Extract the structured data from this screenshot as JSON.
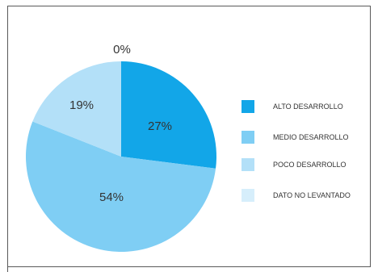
{
  "chart_data": {
    "type": "pie",
    "slices": [
      {
        "label": "ALTO DESARROLLO",
        "value": 27,
        "value_label": "27%",
        "color": "#12a6e8"
      },
      {
        "label": "MEDIO DESARROLLO",
        "value": 54,
        "value_label": "54%",
        "color": "#7fcef4"
      },
      {
        "label": "POCO DESARROLLO",
        "value": 19,
        "value_label": "19%",
        "color": "#b3e0f8"
      },
      {
        "label": "DATO NO LEVANTADO",
        "value": 0,
        "value_label": "0%",
        "color": "#d6eefb"
      }
    ],
    "legend_position": "right"
  }
}
